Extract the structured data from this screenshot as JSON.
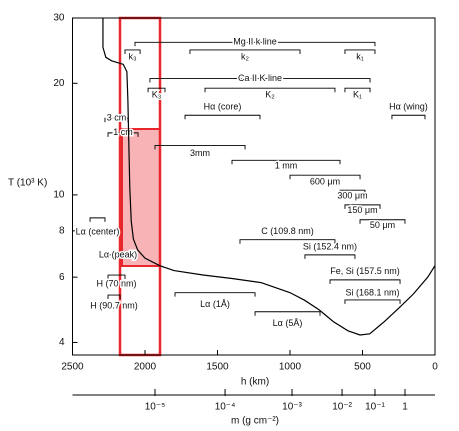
{
  "chart_data": {
    "type": "line",
    "x_label": "h (km)",
    "y_label": "T (10³ K)",
    "xlim": [
      2500,
      0
    ],
    "xticks": [
      2500,
      2000,
      1500,
      1000,
      500,
      0
    ],
    "ylim": [
      3.7,
      30
    ],
    "yticks": [
      4,
      6,
      8,
      10,
      20,
      30
    ],
    "log_y": true,
    "color": "#000000",
    "x": [
      2290,
      2290,
      2270,
      2230,
      2150,
      2125,
      2118,
      2112,
      2105,
      2095,
      2080,
      2050,
      2000,
      1900,
      1800,
      1600,
      1400,
      1200,
      1000,
      900,
      800,
      700,
      600,
      517,
      450,
      350,
      250,
      150,
      50,
      0
    ],
    "values": [
      30,
      25,
      23.5,
      23,
      22.5,
      21.5,
      18,
      14,
      10.5,
      8.5,
      7.6,
      7.1,
      6.75,
      6.45,
      6.25,
      6.08,
      5.95,
      5.8,
      5.45,
      5.2,
      4.9,
      4.55,
      4.3,
      4.19,
      4.22,
      4.55,
      4.95,
      5.4,
      6,
      6.45
    ],
    "mass_axis": {
      "label": "m (g cm⁻²)",
      "ticks": [
        {
          "value": 1e-05,
          "label": "10⁻⁵",
          "h": 1931
        },
        {
          "value": 0.0001,
          "label": "10⁻⁴",
          "h": 1448
        },
        {
          "value": 0.001,
          "label": "10⁻³",
          "h": 986
        },
        {
          "value": 0.01,
          "label": "10⁻²",
          "h": 641
        },
        {
          "value": 0.1,
          "label": "10⁻¹",
          "h": 414
        },
        {
          "value": 1,
          "label": "1",
          "h": 207
        }
      ]
    },
    "highlight_color": "#e8262b",
    "annotations": [
      {
        "label": "Mg II k line",
        "h": [
          2069,
          414
        ],
        "T": 25.8
      },
      {
        "label": "k₃",
        "h": [
          2138,
          2034
        ],
        "T": 24.6
      },
      {
        "label": "k₂",
        "h": [
          1690,
          931
        ],
        "T": 24.6
      },
      {
        "label": "k₁",
        "h": [
          621,
          414
        ],
        "T": 24.6
      },
      {
        "label": "Ca II K line",
        "h": [
          1966,
          448
        ],
        "T": 20.6
      },
      {
        "label": "K₃",
        "h": [
          1979,
          1862
        ],
        "T": 19.4
      },
      {
        "label": "K₂",
        "h": [
          1586,
          690
        ],
        "T": 19.4
      },
      {
        "label": "K₁",
        "h": [
          621,
          448
        ],
        "T": 19.4
      },
      {
        "label": "Hα (core)",
        "h": [
          1724,
          1207
        ],
        "T": 16.4
      },
      {
        "label": "Hα (wing)",
        "h": [
          297,
          69
        ],
        "T": 16.4
      },
      {
        "label": "3 cm",
        "h": [
          2276,
          2117
        ],
        "T": 16.1
      },
      {
        "label": "1 cm",
        "h": [
          2255,
          2048
        ],
        "T": 14.7
      },
      {
        "label": "3mm",
        "h": [
          1931,
          1310
        ],
        "T": 13.6
      },
      {
        "label": "1 mm",
        "h": [
          1400,
          655
        ],
        "T": 12.4
      },
      {
        "label": "600 μm",
        "h": [
          1000,
          517
        ],
        "T": 11.3
      },
      {
        "label": "300 μm",
        "h": [
          655,
          483
        ],
        "T": 10.3
      },
      {
        "label": "150 μm",
        "h": [
          621,
          379
        ],
        "T": 9.4
      },
      {
        "label": "50 μm",
        "h": [
          517,
          207
        ],
        "T": 8.57
      },
      {
        "label": "C (109.8 nm)",
        "h": [
          1345,
          690
        ],
        "T": 7.57
      },
      {
        "label": "Si (152.4 nm)",
        "h": [
          897,
          552
        ],
        "T": 6.89
      },
      {
        "label": "Fe, Si (157.5 nm)",
        "h": [
          724,
          241
        ],
        "T": 5.9
      },
      {
        "label": "Si (168.1 nm)",
        "h": [
          621,
          241
        ],
        "T": 5.21
      },
      {
        "label": "Lα (1Å)",
        "h": [
          1793,
          1241
        ],
        "T": 5.45
      },
      {
        "label": "Lα (5Å)",
        "h": [
          1241,
          793
        ],
        "T": 4.84
      },
      {
        "label": "Lα (center)",
        "h": [
          2379,
          2276
        ],
        "T": 8.67
      },
      {
        "label": "Lα (peak)",
        "h": [
          2255,
          2117
        ],
        "T": 6.89
      },
      {
        "label": "H (70 nm)",
        "h": [
          2255,
          2138
        ],
        "T": 6.08
      },
      {
        "label": "H (90.7 nm)",
        "h": [
          2255,
          2172
        ],
        "T": 5.37
      }
    ]
  }
}
